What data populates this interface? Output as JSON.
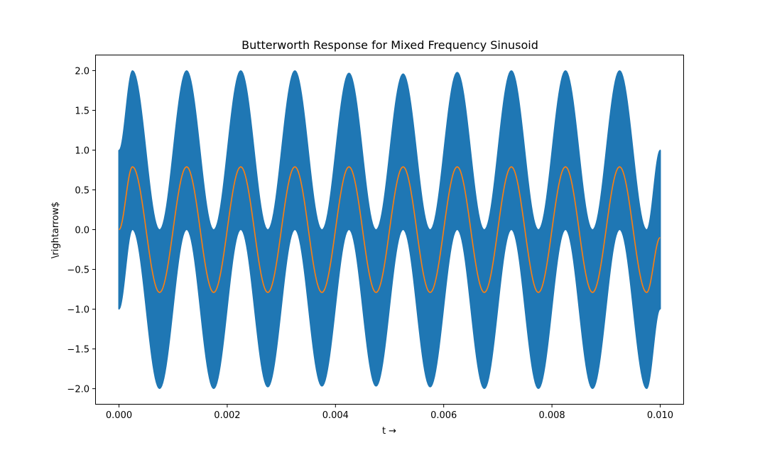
{
  "chart_data": {
    "type": "line",
    "title": "Butterworth Response for Mixed Frequency Sinusoid",
    "xlabel": "t →",
    "ylabel": "\\rightarrow$",
    "xlim": [
      -0.00044,
      0.01044
    ],
    "ylim": [
      -2.2,
      2.2
    ],
    "xticks": [
      0.0,
      0.002,
      0.004,
      0.006,
      0.008,
      0.01
    ],
    "xtick_labels": [
      "0.000",
      "0.002",
      "0.004",
      "0.006",
      "0.008",
      "0.010"
    ],
    "yticks": [
      -2.0,
      -1.5,
      -1.0,
      -0.5,
      0.0,
      0.5,
      1.0,
      1.5,
      2.0
    ],
    "ytick_labels": [
      "−2.0",
      "−1.5",
      "−1.0",
      "−0.5",
      "0.0",
      "0.5",
      "1.0",
      "1.5",
      "2.0"
    ],
    "grid": false,
    "series": [
      {
        "color": "#1f77b4",
        "x_range": [
          0.0,
          0.01
        ],
        "envelope": {
          "upper": [
            {
              "x": 0.00025,
              "y": 2.0
            },
            {
              "x": 0.00075,
              "y": 0.0
            },
            {
              "x": 0.00125,
              "y": 2.0
            },
            {
              "x": 0.00175,
              "y": 0.0
            },
            {
              "x": 0.00225,
              "y": 2.0
            },
            {
              "x": 0.00275,
              "y": 0.0
            },
            {
              "x": 0.00325,
              "y": 2.0
            },
            {
              "x": 0.00375,
              "y": 0.0
            },
            {
              "x": 0.00425,
              "y": 1.97
            },
            {
              "x": 0.00475,
              "y": 0.0
            },
            {
              "x": 0.00525,
              "y": 1.96
            },
            {
              "x": 0.00575,
              "y": 0.0
            },
            {
              "x": 0.00625,
              "y": 1.98
            },
            {
              "x": 0.00675,
              "y": 0.0
            },
            {
              "x": 0.00725,
              "y": 2.0
            },
            {
              "x": 0.00775,
              "y": 0.0
            },
            {
              "x": 0.00825,
              "y": 2.0
            },
            {
              "x": 0.00875,
              "y": 0.0
            },
            {
              "x": 0.00925,
              "y": 2.0
            },
            {
              "x": 0.00975,
              "y": 0.0
            }
          ],
          "lower": [
            {
              "x": 0.00025,
              "y": 0.0
            },
            {
              "x": 0.00075,
              "y": -2.0
            },
            {
              "x": 0.00125,
              "y": 0.0
            },
            {
              "x": 0.00175,
              "y": -2.0
            },
            {
              "x": 0.00225,
              "y": 0.0
            },
            {
              "x": 0.00275,
              "y": -1.98
            },
            {
              "x": 0.00325,
              "y": 0.0
            },
            {
              "x": 0.00375,
              "y": -1.97
            },
            {
              "x": 0.00425,
              "y": 0.0
            },
            {
              "x": 0.00475,
              "y": -1.97
            },
            {
              "x": 0.00525,
              "y": 0.0
            },
            {
              "x": 0.00575,
              "y": -1.98
            },
            {
              "x": 0.00625,
              "y": 0.0
            },
            {
              "x": 0.00675,
              "y": -2.0
            },
            {
              "x": 0.00725,
              "y": 0.0
            },
            {
              "x": 0.00775,
              "y": -2.0
            },
            {
              "x": 0.00825,
              "y": 0.0
            },
            {
              "x": 0.00875,
              "y": -2.0
            },
            {
              "x": 0.00925,
              "y": 0.0
            },
            {
              "x": 0.00975,
              "y": -2.0
            }
          ],
          "start": [
            -1.0,
            1.0
          ],
          "end": [
            -1.0,
            1.0
          ]
        }
      },
      {
        "color": "#ff7f0e",
        "points": [
          {
            "x": 0.0,
            "y": 0.0
          },
          {
            "x": 0.00025,
            "y": 0.79
          },
          {
            "x": 0.00075,
            "y": -0.79
          },
          {
            "x": 0.00125,
            "y": 0.79
          },
          {
            "x": 0.00175,
            "y": -0.79
          },
          {
            "x": 0.00225,
            "y": 0.79
          },
          {
            "x": 0.00275,
            "y": -0.79
          },
          {
            "x": 0.00325,
            "y": 0.79
          },
          {
            "x": 0.00375,
            "y": -0.79
          },
          {
            "x": 0.00425,
            "y": 0.79
          },
          {
            "x": 0.00475,
            "y": -0.79
          },
          {
            "x": 0.00525,
            "y": 0.79
          },
          {
            "x": 0.00575,
            "y": -0.79
          },
          {
            "x": 0.00625,
            "y": 0.79
          },
          {
            "x": 0.00675,
            "y": -0.79
          },
          {
            "x": 0.00725,
            "y": 0.79
          },
          {
            "x": 0.00775,
            "y": -0.79
          },
          {
            "x": 0.00825,
            "y": 0.79
          },
          {
            "x": 0.00875,
            "y": -0.79
          },
          {
            "x": 0.00925,
            "y": 0.79
          },
          {
            "x": 0.00975,
            "y": -0.79
          },
          {
            "x": 0.01,
            "y": -0.1
          }
        ]
      }
    ]
  }
}
